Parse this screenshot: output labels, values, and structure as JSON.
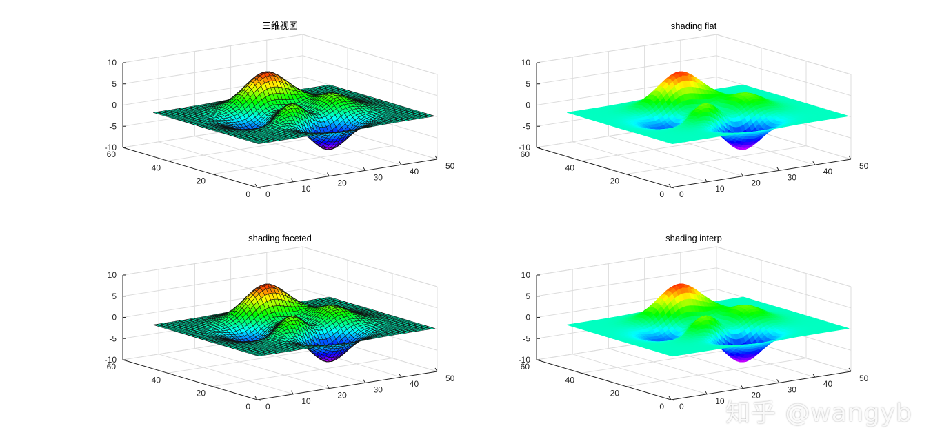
{
  "figure": {
    "watermark": "知乎 @wangyb"
  },
  "chart_data": [
    {
      "type": "surface",
      "title": "三维视图",
      "shading": "faceted",
      "edges": true,
      "colormap": "hsv",
      "xlim": [
        0,
        50
      ],
      "ylim": [
        0,
        60
      ],
      "zlim": [
        -10,
        10
      ],
      "xticks": [
        "0",
        "10",
        "20",
        "30",
        "40",
        "50"
      ],
      "yticks": [
        "0",
        "20",
        "40",
        "60"
      ],
      "zticks": [
        "-10",
        "-5",
        "0",
        "5",
        "10"
      ],
      "grid": true,
      "grid_size": [
        49,
        49
      ],
      "z_peak": 8.1,
      "z_min": -6.5
    },
    {
      "type": "surface",
      "title": "shading flat",
      "shading": "flat",
      "edges": false,
      "colormap": "hsv",
      "xlim": [
        0,
        50
      ],
      "ylim": [
        0,
        60
      ],
      "zlim": [
        -10,
        10
      ],
      "xticks": [
        "0",
        "10",
        "20",
        "30",
        "40",
        "50"
      ],
      "yticks": [
        "0",
        "20",
        "40",
        "60"
      ],
      "zticks": [
        "-10",
        "-5",
        "0",
        "5",
        "10"
      ],
      "grid": true,
      "grid_size": [
        49,
        49
      ],
      "z_peak": 8.1,
      "z_min": -6.5
    },
    {
      "type": "surface",
      "title": "shading faceted",
      "shading": "faceted",
      "edges": true,
      "colormap": "hsv",
      "xlim": [
        0,
        50
      ],
      "ylim": [
        0,
        60
      ],
      "zlim": [
        -10,
        10
      ],
      "xticks": [
        "0",
        "10",
        "20",
        "30",
        "40",
        "50"
      ],
      "yticks": [
        "0",
        "20",
        "40",
        "60"
      ],
      "zticks": [
        "-10",
        "-5",
        "0",
        "5",
        "10"
      ],
      "grid": true,
      "grid_size": [
        49,
        49
      ],
      "z_peak": 8.1,
      "z_min": -6.5
    },
    {
      "type": "surface",
      "title": "shading interp",
      "shading": "interp",
      "edges": false,
      "colormap": "hsv",
      "xlim": [
        0,
        50
      ],
      "ylim": [
        0,
        60
      ],
      "zlim": [
        -10,
        10
      ],
      "xticks": [
        "0",
        "10",
        "20",
        "30",
        "40",
        "50"
      ],
      "yticks": [
        "0",
        "20",
        "40",
        "60"
      ],
      "zticks": [
        "-10",
        "-5",
        "0",
        "5",
        "10"
      ],
      "grid": true,
      "grid_size": [
        49,
        49
      ],
      "z_peak": 8.1,
      "z_min": -6.5
    }
  ]
}
